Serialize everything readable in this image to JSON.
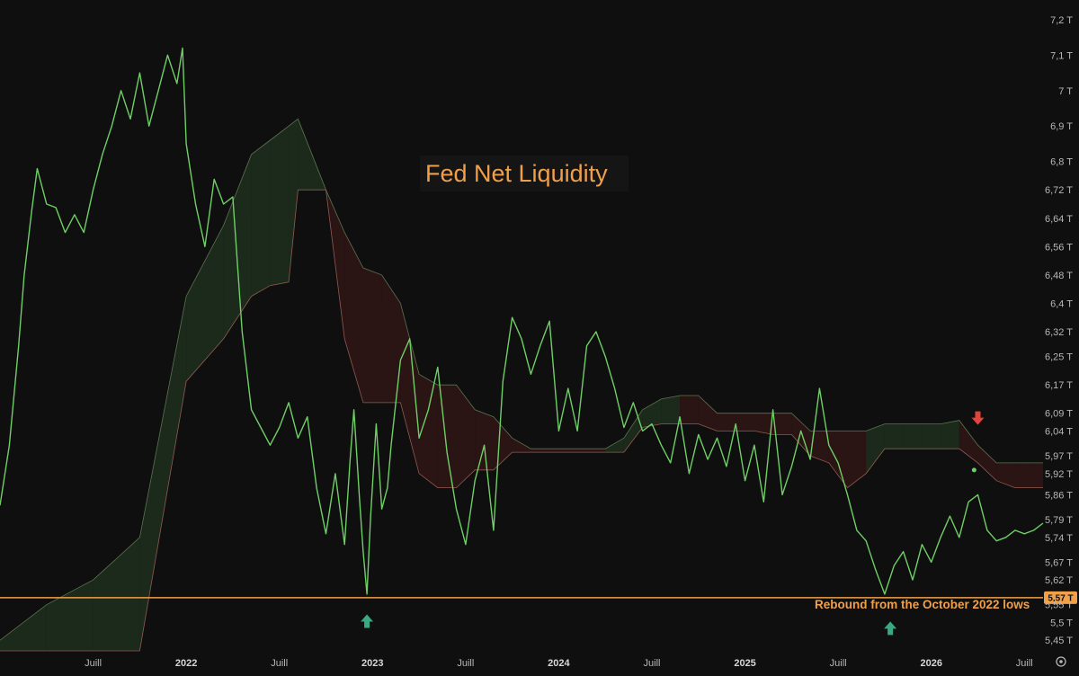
{
  "chart_data": {
    "type": "line",
    "title": "Fed Net Liquidity",
    "colors": {
      "background": "#0f0f0f",
      "line": "#6fcf66",
      "cloud_bull": "#1b2a1b",
      "cloud_bear": "#2a1514",
      "cloud_bull_edge": "#6b8b5f",
      "cloud_bear_edge": "#b06b5f",
      "hline": "#f0a04b",
      "arrow_up": "#3aa983",
      "arrow_down": "#e0443d",
      "axis_text": "#b7b7b7"
    },
    "xlim": [
      2021.0,
      2026.6
    ],
    "ylim": [
      5.42,
      7.22
    ],
    "y_ticks": [
      "7,2 T",
      "7,1 T",
      "7 T",
      "6,9 T",
      "6,8 T",
      "6,72 T",
      "6,64 T",
      "6,56 T",
      "6,48 T",
      "6,4 T",
      "6,32 T",
      "6,25 T",
      "6,17 T",
      "6,09 T",
      "6,04 T",
      "5,97 T",
      "5,92 T",
      "5,86 T",
      "5,79 T",
      "5,74 T",
      "5,67 T",
      "5,62 T",
      "5,55 T",
      "5,5 T",
      "5,45 T"
    ],
    "y_tick_values": [
      7.2,
      7.1,
      7.0,
      6.9,
      6.8,
      6.72,
      6.64,
      6.56,
      6.48,
      6.4,
      6.32,
      6.25,
      6.17,
      6.09,
      6.04,
      5.97,
      5.92,
      5.86,
      5.79,
      5.74,
      5.67,
      5.62,
      5.55,
      5.5,
      5.45
    ],
    "x_ticks": [
      {
        "label": "Juill",
        "value": 2021.5,
        "bold": false
      },
      {
        "label": "2022",
        "value": 2022.0,
        "bold": true
      },
      {
        "label": "Juill",
        "value": 2022.5,
        "bold": false
      },
      {
        "label": "2023",
        "value": 2023.0,
        "bold": true
      },
      {
        "label": "Juill",
        "value": 2023.5,
        "bold": false
      },
      {
        "label": "2024",
        "value": 2024.0,
        "bold": true
      },
      {
        "label": "Juill",
        "value": 2024.5,
        "bold": false
      },
      {
        "label": "2025",
        "value": 2025.0,
        "bold": true
      },
      {
        "label": "Juill",
        "value": 2025.5,
        "bold": false
      },
      {
        "label": "2026",
        "value": 2026.0,
        "bold": true
      },
      {
        "label": "Juill",
        "value": 2026.5,
        "bold": false
      }
    ],
    "series": [
      {
        "name": "Fed Net Liquidity",
        "x": [
          2021.0,
          2021.05,
          2021.1,
          2021.13,
          2021.17,
          2021.2,
          2021.25,
          2021.3,
          2021.35,
          2021.4,
          2021.45,
          2021.5,
          2021.55,
          2021.6,
          2021.65,
          2021.7,
          2021.75,
          2021.8,
          2021.85,
          2021.9,
          2021.95,
          2021.98,
          2022.0,
          2022.05,
          2022.1,
          2022.15,
          2022.2,
          2022.25,
          2022.3,
          2022.35,
          2022.4,
          2022.45,
          2022.5,
          2022.55,
          2022.6,
          2022.65,
          2022.7,
          2022.75,
          2022.8,
          2022.85,
          2022.88,
          2022.9,
          2022.93,
          2022.95,
          2022.97,
          2022.99,
          2023.02,
          2023.05,
          2023.08,
          2023.1,
          2023.15,
          2023.2,
          2023.25,
          2023.3,
          2023.35,
          2023.4,
          2023.45,
          2023.5,
          2023.55,
          2023.6,
          2023.65,
          2023.7,
          2023.75,
          2023.8,
          2023.85,
          2023.9,
          2023.95,
          2024.0,
          2024.05,
          2024.1,
          2024.15,
          2024.2,
          2024.25,
          2024.3,
          2024.35,
          2024.4,
          2024.45,
          2024.5,
          2024.55,
          2024.6,
          2024.65,
          2024.7,
          2024.75,
          2024.8,
          2024.85,
          2024.9,
          2024.95,
          2025.0,
          2025.05,
          2025.1,
          2025.15,
          2025.2,
          2025.25,
          2025.3,
          2025.35,
          2025.4,
          2025.45,
          2025.5,
          2025.55,
          2025.6,
          2025.65,
          2025.7,
          2025.75,
          2025.8,
          2025.85,
          2025.9,
          2025.95,
          2026.0,
          2026.05,
          2026.1,
          2026.15,
          2026.2,
          2026.25,
          2026.3,
          2026.35,
          2026.4,
          2026.45,
          2026.5,
          2026.55,
          2026.6
        ],
        "values": [
          5.83,
          6.0,
          6.28,
          6.48,
          6.66,
          6.78,
          6.68,
          6.67,
          6.6,
          6.65,
          6.6,
          6.72,
          6.82,
          6.9,
          7.0,
          6.92,
          7.05,
          6.9,
          7.0,
          7.1,
          7.02,
          7.12,
          6.85,
          6.68,
          6.56,
          6.75,
          6.68,
          6.7,
          6.32,
          6.1,
          6.05,
          6.0,
          6.05,
          6.12,
          6.02,
          6.08,
          5.88,
          5.75,
          5.92,
          5.72,
          5.96,
          6.1,
          5.85,
          5.7,
          5.58,
          5.8,
          6.06,
          5.82,
          5.88,
          6.0,
          6.24,
          6.3,
          6.02,
          6.1,
          6.22,
          5.98,
          5.82,
          5.72,
          5.9,
          6.0,
          5.76,
          6.18,
          6.36,
          6.3,
          6.2,
          6.28,
          6.35,
          6.04,
          6.16,
          6.04,
          6.28,
          6.32,
          6.25,
          6.16,
          6.05,
          6.12,
          6.04,
          6.06,
          6.0,
          5.95,
          6.08,
          5.92,
          6.03,
          5.96,
          6.02,
          5.94,
          6.06,
          5.9,
          6.0,
          5.84,
          6.1,
          5.86,
          5.94,
          6.04,
          5.96,
          6.16,
          6.0,
          5.95,
          5.86,
          5.76,
          5.73,
          5.65,
          5.58,
          5.66,
          5.7,
          5.62,
          5.72,
          5.67,
          5.74,
          5.8,
          5.74,
          5.84,
          5.86,
          5.76,
          5.73,
          5.74,
          5.76,
          5.75,
          5.76,
          5.78
        ]
      },
      {
        "name": "Cloud Upper",
        "x": [
          2021.0,
          2021.25,
          2021.5,
          2021.75,
          2022.0,
          2022.2,
          2022.35,
          2022.45,
          2022.55,
          2022.6,
          2022.75,
          2022.85,
          2022.95,
          2023.05,
          2023.15,
          2023.25,
          2023.35,
          2023.45,
          2023.55,
          2023.65,
          2023.75,
          2023.85,
          2023.95,
          2024.05,
          2024.15,
          2024.25,
          2024.35,
          2024.45,
          2024.55,
          2024.65,
          2024.75,
          2024.85,
          2024.95,
          2025.05,
          2025.15,
          2025.25,
          2025.35,
          2025.45,
          2025.55,
          2025.65,
          2025.75,
          2025.85,
          2025.95,
          2026.05,
          2026.15,
          2026.25,
          2026.35,
          2026.45,
          2026.55,
          2026.6
        ],
        "values": [
          5.45,
          5.55,
          5.62,
          5.74,
          6.42,
          6.62,
          6.82,
          6.86,
          6.9,
          6.92,
          6.72,
          6.6,
          6.5,
          6.48,
          6.4,
          6.2,
          6.17,
          6.17,
          6.1,
          6.08,
          6.02,
          5.99,
          5.99,
          5.99,
          5.99,
          5.99,
          6.02,
          6.1,
          6.13,
          6.14,
          6.14,
          6.09,
          6.09,
          6.09,
          6.09,
          6.09,
          6.04,
          6.04,
          6.04,
          6.04,
          6.06,
          6.06,
          6.06,
          6.06,
          6.07,
          6.0,
          5.95,
          5.95,
          5.95,
          5.95
        ]
      },
      {
        "name": "Cloud Lower",
        "x": [
          2021.0,
          2021.25,
          2021.5,
          2021.75,
          2022.0,
          2022.2,
          2022.35,
          2022.45,
          2022.55,
          2022.6,
          2022.75,
          2022.85,
          2022.95,
          2023.05,
          2023.15,
          2023.25,
          2023.35,
          2023.45,
          2023.55,
          2023.65,
          2023.75,
          2023.85,
          2023.95,
          2024.05,
          2024.15,
          2024.25,
          2024.35,
          2024.45,
          2024.55,
          2024.65,
          2024.75,
          2024.85,
          2024.95,
          2025.05,
          2025.15,
          2025.25,
          2025.35,
          2025.45,
          2025.55,
          2025.65,
          2025.75,
          2025.85,
          2025.95,
          2026.05,
          2026.15,
          2026.25,
          2026.35,
          2026.45,
          2026.55,
          2026.6
        ],
        "values": [
          5.42,
          5.42,
          5.42,
          5.42,
          6.18,
          6.3,
          6.42,
          6.45,
          6.46,
          6.72,
          6.72,
          6.3,
          6.12,
          6.12,
          6.12,
          5.92,
          5.88,
          5.88,
          5.93,
          5.93,
          5.98,
          5.98,
          5.98,
          5.98,
          5.98,
          5.98,
          5.98,
          6.05,
          6.06,
          6.06,
          6.06,
          6.04,
          6.04,
          6.04,
          6.03,
          6.03,
          5.97,
          5.95,
          5.88,
          5.92,
          5.99,
          5.99,
          5.99,
          5.99,
          5.99,
          5.95,
          5.9,
          5.88,
          5.88,
          5.88
        ]
      }
    ],
    "hline": {
      "value": 5.57,
      "label": "5,57 T"
    },
    "annotation": "Rebound from the October 2022 lows",
    "markers": [
      {
        "type": "arrow-up",
        "x": 2022.97,
        "y": 5.5
      },
      {
        "type": "arrow-up",
        "x": 2025.78,
        "y": 5.48
      },
      {
        "type": "arrow-down",
        "x": 2026.25,
        "y": 6.08
      },
      {
        "type": "dot",
        "x": 2026.23,
        "y": 5.93
      }
    ]
  }
}
